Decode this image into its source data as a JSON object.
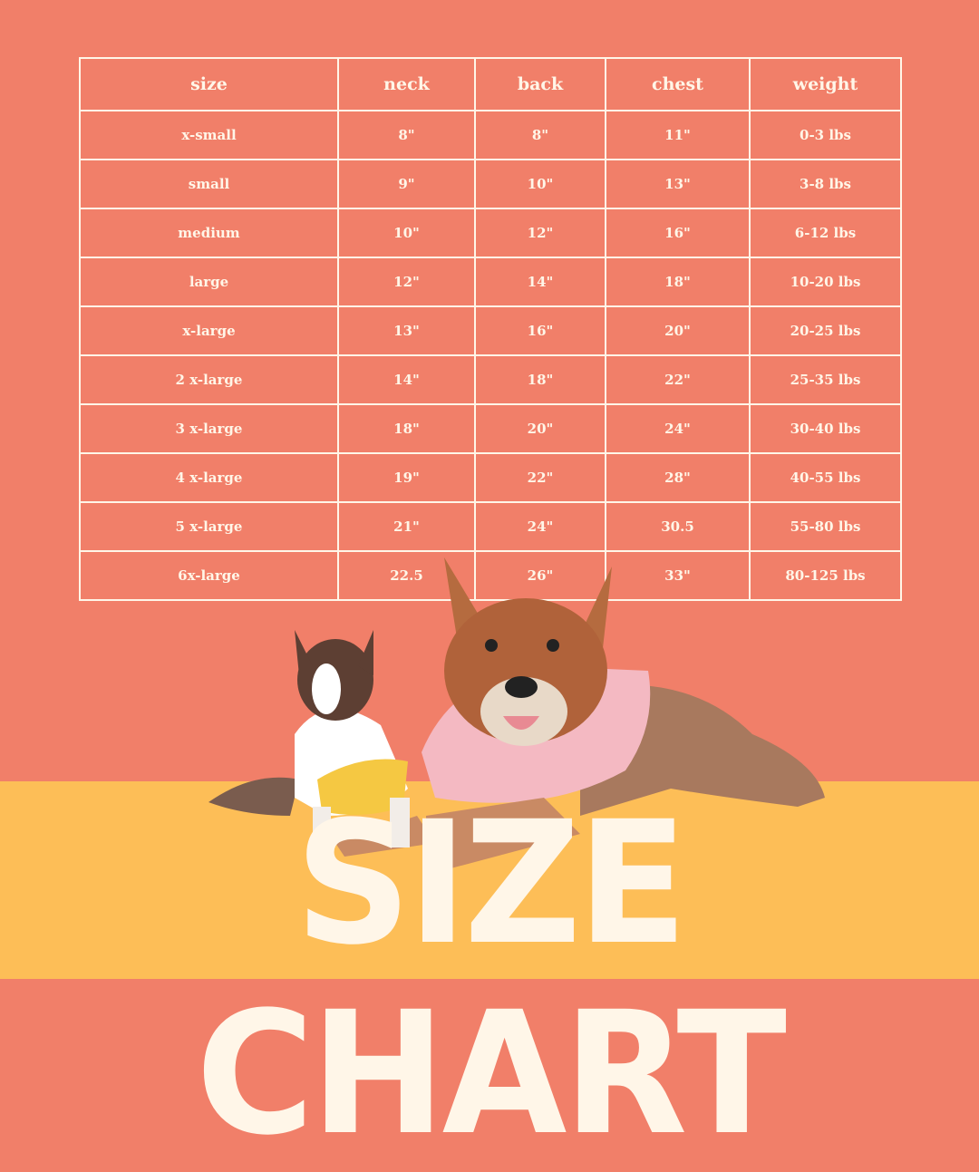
{
  "colors": {
    "background": "#F17F69",
    "floor": "#FDBE57",
    "text": "#FFF6E8"
  },
  "table": {
    "headers": [
      "size",
      "neck",
      "back",
      "chest",
      "weight"
    ],
    "rows": [
      [
        "x-small",
        "8\"",
        "8\"",
        "11\"",
        "0-3 lbs"
      ],
      [
        "small",
        "9\"",
        "10\"",
        "13\"",
        "3-8 lbs"
      ],
      [
        "medium",
        "10\"",
        "12\"",
        "16\"",
        "6-12 lbs"
      ],
      [
        "large",
        "12\"",
        "14\"",
        "18\"",
        "10-20 lbs"
      ],
      [
        "x-large",
        "13\"",
        "16\"",
        "20\"",
        "20-25 lbs"
      ],
      [
        "2 x-large",
        "14\"",
        "18\"",
        "22\"",
        "25-35 lbs"
      ],
      [
        "3 x-large",
        "18\"",
        "20\"",
        "24\"",
        "30-40 lbs"
      ],
      [
        "4 x-large",
        "19\"",
        "22\"",
        "28\"",
        "40-55 lbs"
      ],
      [
        "5 x-large",
        "21\"",
        "24\"",
        "30.5",
        "55-80 lbs"
      ],
      [
        "6x-large",
        "22.5",
        "26\"",
        "33\"",
        "80-125 lbs"
      ]
    ]
  },
  "title": "SIZE CHART",
  "images": [
    "chihuahua-in-yellow-shirt",
    "cattle-dog-in-pink-shirt"
  ]
}
